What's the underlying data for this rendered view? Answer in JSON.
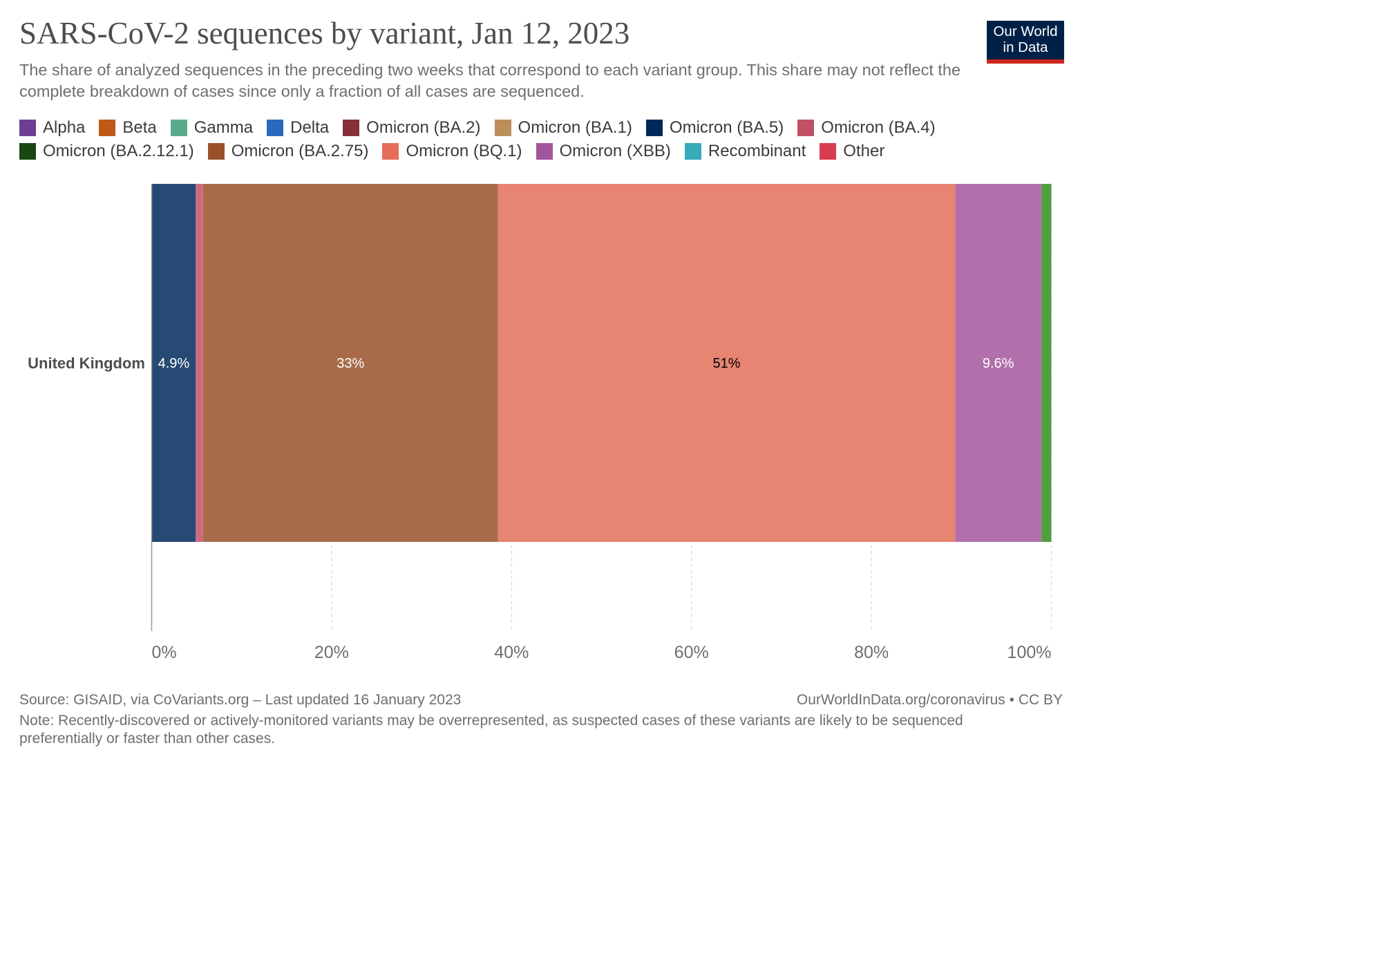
{
  "title": "SARS-CoV-2 sequences by variant, Jan 12, 2023",
  "subtitle": "The share of analyzed sequences in the preceding two weeks that correspond to each variant group. This share may not reflect the complete breakdown of cases since only a fraction of all cases are sequenced.",
  "logo": {
    "line1": "Our World",
    "line2": "in Data"
  },
  "legend": [
    {
      "label": "Alpha",
      "color": "#6d3e91"
    },
    {
      "label": "Beta",
      "color": "#c05917"
    },
    {
      "label": "Gamma",
      "color": "#58ac8c"
    },
    {
      "label": "Delta",
      "color": "#286bbb"
    },
    {
      "label": "Omicron (BA.2)",
      "color": "#883039"
    },
    {
      "label": "Omicron (BA.1)",
      "color": "#bc8e5a"
    },
    {
      "label": "Omicron (BA.5)",
      "color": "#00295b"
    },
    {
      "label": "Omicron (BA.4)",
      "color": "#c15065"
    },
    {
      "label": "Omicron (BA.2.12.1)",
      "color": "#18470f"
    },
    {
      "label": "Omicron (BA.2.75)",
      "color": "#9a5129"
    },
    {
      "label": "Omicron (BQ.1)",
      "color": "#e56e5a"
    },
    {
      "label": "Omicron (XBB)",
      "color": "#a2559c"
    },
    {
      "label": "Recombinant",
      "color": "#38aaba"
    },
    {
      "label": "Other",
      "color": "#d73c50"
    }
  ],
  "chart_data": {
    "type": "bar",
    "orientation": "horizontal",
    "stacked": true,
    "categories": [
      "United Kingdom"
    ],
    "series": [
      {
        "name": "Omicron (BA.5)",
        "values": [
          4.9
        ],
        "label": "4.9%",
        "color": "#264a73",
        "label_color": "#ffffff"
      },
      {
        "name": "Omicron (BA.4)",
        "values": [
          0.8
        ],
        "label": "",
        "color": "#cf6a80",
        "label_color": "#ffffff"
      },
      {
        "name": "Omicron (BA.2.75)",
        "values": [
          32.8
        ],
        "label": "33%",
        "color": "#a86c4a",
        "label_color": "#ffffff"
      },
      {
        "name": "Omicron (BQ.1)",
        "values": [
          50.8
        ],
        "label": "51%",
        "color": "#e88472",
        "label_color": "#000000"
      },
      {
        "name": "Omicron (XBB)",
        "values": [
          9.6
        ],
        "label": "9.6%",
        "color": "#b170ab",
        "label_color": "#ffffff"
      },
      {
        "name": "Recombinant",
        "values": [
          1.1
        ],
        "label": "",
        "color": "#4f9e3f",
        "label_color": "#ffffff"
      }
    ],
    "x_ticks": [
      {
        "value": 0,
        "label": "0%"
      },
      {
        "value": 20,
        "label": "20%"
      },
      {
        "value": 40,
        "label": "40%"
      },
      {
        "value": 60,
        "label": "60%"
      },
      {
        "value": 80,
        "label": "80%"
      },
      {
        "value": 100,
        "label": "100%"
      }
    ],
    "xlim": [
      0,
      100
    ],
    "grid": "vertical dashed"
  },
  "footer": {
    "source": "Source: GISAID, via CoVariants.org – Last updated 16 January 2023",
    "url": "OurWorldInData.org/coronavirus • CC BY",
    "note": "Note: Recently-discovered or actively-monitored variants may be overrepresented, as suspected cases of these variants are likely to be sequenced preferentially or faster than other cases."
  }
}
